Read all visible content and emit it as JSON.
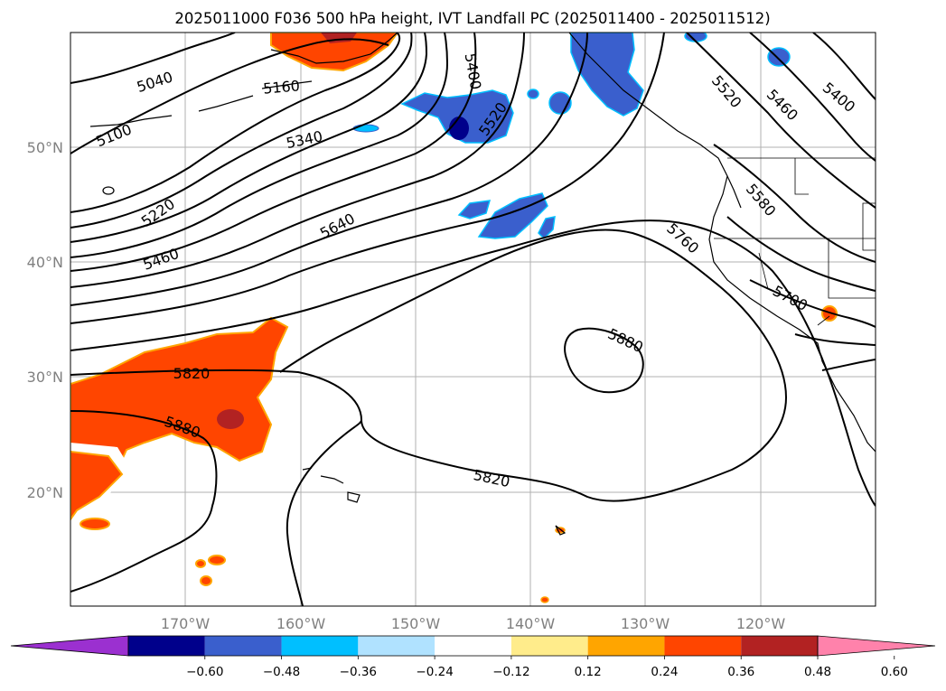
{
  "title": "2025011000 F036 500 hPa height, IVT Landfall PC (2025011400 - 2025011512)",
  "map": {
    "lon_labels": [
      "170°W",
      "160°W",
      "150°W",
      "140°W",
      "130°W",
      "120°W"
    ],
    "lat_labels": [
      "50°N",
      "40°N",
      "30°N",
      "20°N"
    ],
    "contour_labels": [
      "5040",
      "5100",
      "5160",
      "5220",
      "5340",
      "5460",
      "5640",
      "5820",
      "5880",
      "5400",
      "5520",
      "5520",
      "5460",
      "5400",
      "5580",
      "5760",
      "5700",
      "5880",
      "5820"
    ]
  },
  "colorbar": {
    "ticks": [
      "−0.60",
      "−0.48",
      "−0.36",
      "−0.24",
      "−0.12",
      "0.12",
      "0.24",
      "0.36",
      "0.48",
      "0.60"
    ],
    "colors": [
      "#9b30d0",
      "#00008b",
      "#3a5fcd",
      "#00bfff",
      "#b0e2ff",
      "#ffffff",
      "#ffec8b",
      "#ffa500",
      "#ff4500",
      "#b22222",
      "#ff82ab"
    ],
    "extend": "both"
  }
}
